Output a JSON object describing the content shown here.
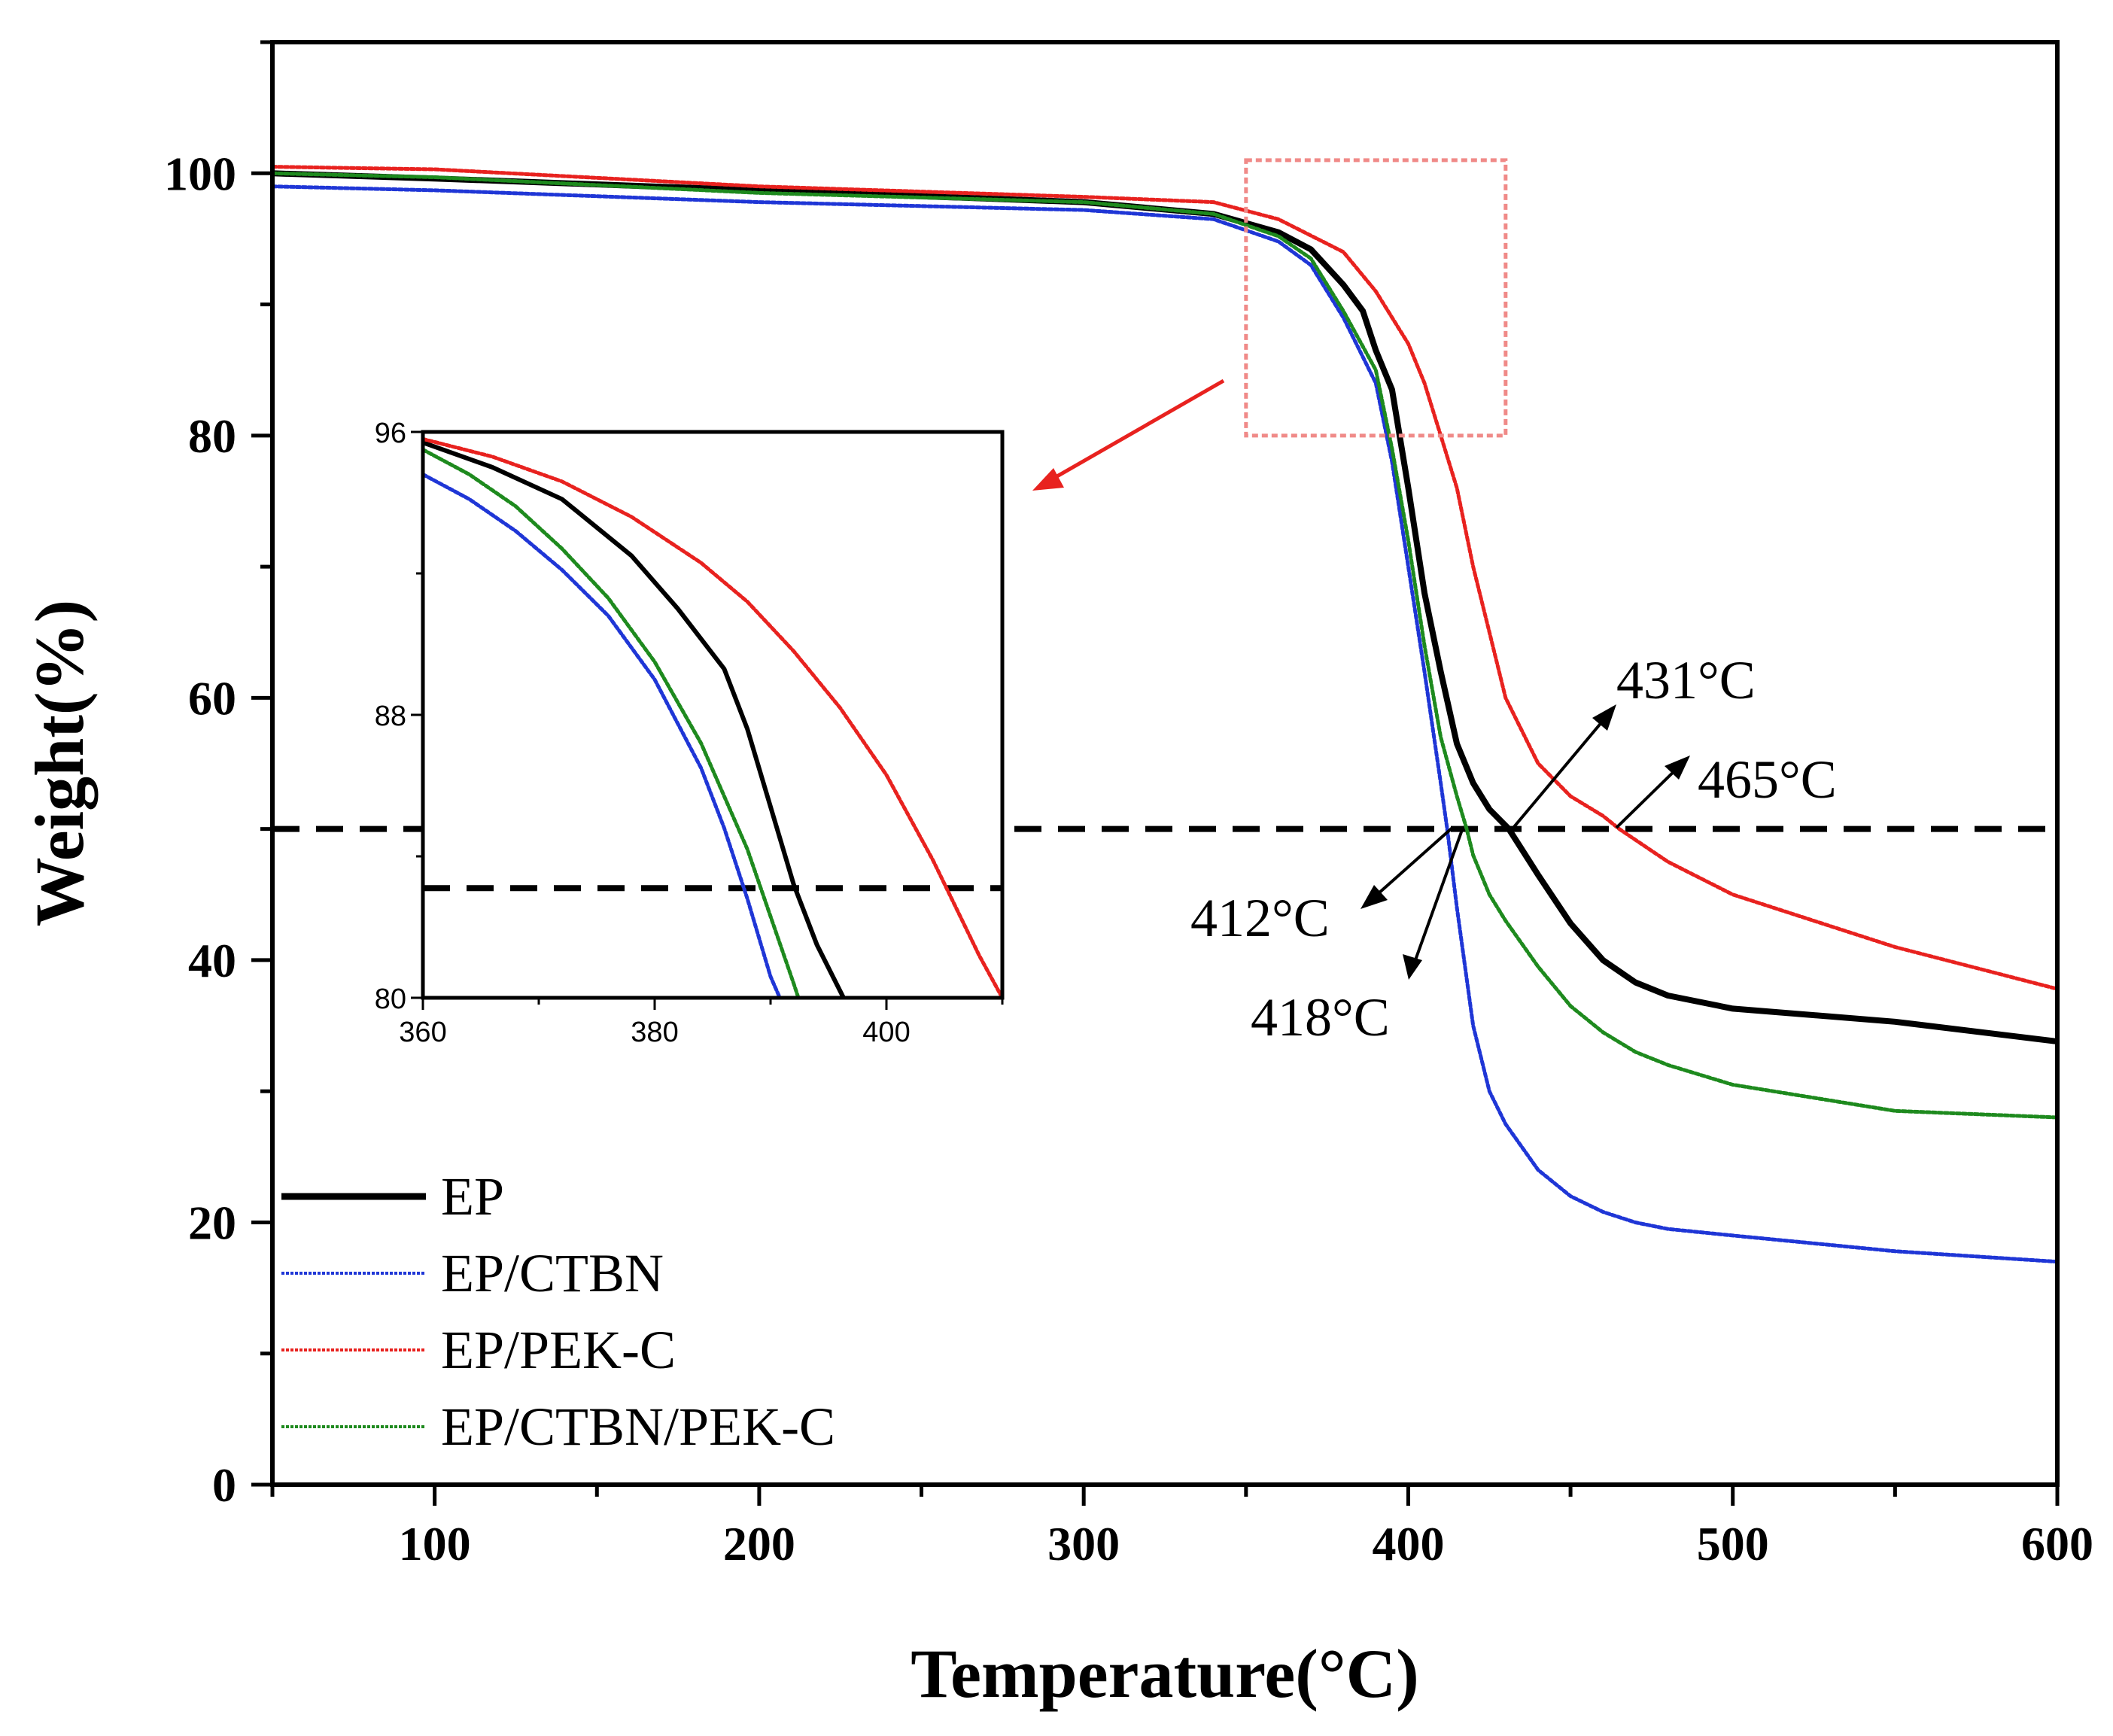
{
  "chart_data": [
    {
      "type": "line",
      "title": "",
      "xlabel": "Temperature(°C)",
      "ylabel": "Weight(%)",
      "xlim": [
        50,
        600
      ],
      "ylim": [
        0,
        110
      ],
      "xticks": [
        100,
        200,
        300,
        400,
        500,
        600
      ],
      "yticks": [
        0,
        20,
        40,
        60,
        80,
        100
      ],
      "grid": false,
      "legend_position": "bottom-left",
      "reference_line": {
        "y": 50,
        "style": "dashed"
      },
      "series": [
        {
          "name": "EP",
          "color": "#000000",
          "style": "solid",
          "x": [
            50,
            100,
            200,
            300,
            340,
            360,
            370,
            380,
            386,
            390,
            395,
            400,
            405,
            410,
            415,
            420,
            425,
            431,
            440,
            450,
            460,
            470,
            480,
            500,
            550,
            600
          ],
          "y": [
            100,
            99.6,
            98.7,
            97.8,
            96.9,
            95.5,
            94.2,
            91.5,
            89.5,
            86.5,
            83.5,
            76,
            68,
            62,
            56.5,
            53.5,
            51.5,
            50,
            46.5,
            42.8,
            40,
            38.3,
            37.3,
            36.3,
            35.3,
            33.8
          ]
        },
        {
          "name": "EP/CTBN",
          "color": "#1f36d6",
          "style": "dashed",
          "x": [
            50,
            100,
            200,
            300,
            340,
            360,
            370,
            380,
            390,
            395,
            400,
            405,
            410,
            412,
            415,
            420,
            425,
            430,
            440,
            450,
            460,
            470,
            480,
            500,
            550,
            600
          ],
          "y": [
            99,
            98.7,
            97.8,
            97.2,
            96.5,
            94.8,
            93,
            89,
            84,
            78,
            70,
            62,
            53.5,
            50,
            44,
            35,
            30,
            27.5,
            24,
            22,
            20.8,
            20,
            19.5,
            19,
            17.8,
            17
          ]
        },
        {
          "name": "EP/PEK-C",
          "color": "#e8221f",
          "style": "dashed",
          "x": [
            50,
            100,
            200,
            300,
            340,
            360,
            380,
            390,
            400,
            405,
            410,
            415,
            420,
            425,
            430,
            440,
            450,
            460,
            465,
            480,
            500,
            550,
            600
          ],
          "y": [
            100.5,
            100.3,
            99,
            98.2,
            97.8,
            96.5,
            94,
            91,
            87,
            84,
            80,
            76,
            70,
            65,
            60,
            55,
            52.5,
            51,
            50,
            47.5,
            45,
            41,
            37.8
          ]
        },
        {
          "name": "EP/CTBN/PEK-C",
          "color": "#1e8a1e",
          "style": "dashed",
          "x": [
            50,
            100,
            200,
            300,
            340,
            360,
            370,
            380,
            390,
            395,
            400,
            405,
            410,
            415,
            418,
            420,
            425,
            430,
            440,
            450,
            460,
            470,
            480,
            500,
            550,
            600
          ],
          "y": [
            100,
            99.7,
            98.5,
            97.8,
            96.9,
            95.2,
            93.5,
            89.5,
            85,
            79,
            72,
            64,
            57,
            52.5,
            50,
            48,
            45,
            43,
            39.5,
            36.5,
            34.5,
            33,
            32,
            30.5,
            28.5,
            28
          ]
        }
      ],
      "annotations": [
        {
          "text": "431°C",
          "x": 431,
          "y": 50
        },
        {
          "text": "465°C",
          "x": 465,
          "y": 50
        },
        {
          "text": "412°C",
          "x": 412,
          "y": 50
        },
        {
          "text": "418°C",
          "x": 418,
          "y": 50
        }
      ],
      "highlight_region": {
        "x": [
          350,
          430
        ],
        "y": [
          80,
          101
        ]
      }
    },
    {
      "type": "line",
      "title": "",
      "xlabel": "",
      "ylabel": "",
      "xlim": [
        360,
        410
      ],
      "ylim": [
        80,
        96
      ],
      "xticks": [
        360,
        380,
        400
      ],
      "yticks": [
        80,
        88,
        96
      ],
      "grid": false,
      "reference_line": {
        "y": 83.1,
        "style": "dashed"
      },
      "series": [
        {
          "name": "EP",
          "color": "#000000",
          "style": "solid",
          "x": [
            360,
            366,
            372,
            378,
            382,
            386,
            388,
            390,
            392,
            394,
            396.3
          ],
          "y": [
            95.7,
            95,
            94.1,
            92.5,
            91,
            89.3,
            87.6,
            85.4,
            83.2,
            81.5,
            80
          ]
        },
        {
          "name": "EP/CTBN",
          "color": "#1f36d6",
          "style": "dashed",
          "x": [
            360,
            364,
            368,
            372,
            376,
            380,
            384,
            386,
            388,
            390,
            390.8
          ],
          "y": [
            94.8,
            94.1,
            93.2,
            92.1,
            90.8,
            89,
            86.5,
            84.8,
            82.8,
            80.6,
            80
          ]
        },
        {
          "name": "EP/PEK-C",
          "color": "#e8221f",
          "style": "dashed",
          "x": [
            360,
            366,
            372,
            378,
            384,
            388,
            392,
            396,
            400,
            404,
            408,
            410
          ],
          "y": [
            95.8,
            95.3,
            94.6,
            93.6,
            92.3,
            91.2,
            89.8,
            88.2,
            86.3,
            83.9,
            81.2,
            80
          ]
        },
        {
          "name": "EP/CTBN/PEK-C",
          "color": "#1e8a1e",
          "style": "dashed",
          "x": [
            360,
            364,
            368,
            372,
            376,
            380,
            384,
            388,
            390,
            392,
            392.4
          ],
          "y": [
            95.5,
            94.8,
            93.9,
            92.7,
            91.3,
            89.5,
            87.2,
            84.2,
            82.3,
            80.4,
            80
          ]
        }
      ]
    }
  ]
}
